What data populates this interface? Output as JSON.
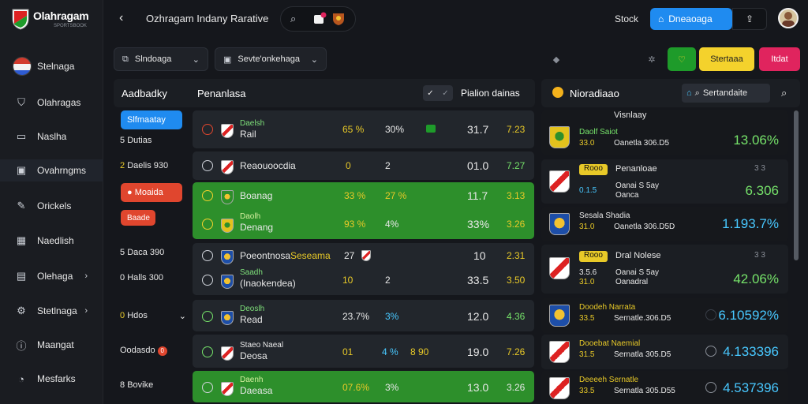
{
  "brand": {
    "name": "Olahragam",
    "sub": "SPORTSBOOK"
  },
  "sidebar": {
    "items": [
      {
        "label": "Stelnaga",
        "icon": "flag-icon"
      },
      {
        "label": "Olahragas",
        "icon": "shield-icon"
      },
      {
        "label": "Naslha",
        "icon": "chat-icon"
      },
      {
        "label": "Ovahrngms",
        "icon": "box-icon"
      },
      {
        "label": "Orickels",
        "icon": "trophy-icon"
      },
      {
        "label": "Naedlish",
        "icon": "grid-icon"
      },
      {
        "label": "Olehaga",
        "icon": "calendar-icon",
        "chevron": "›"
      },
      {
        "label": "Stetlnaga",
        "icon": "settings-icon",
        "chevron": "›"
      },
      {
        "label": "Maangat",
        "icon": "info-icon"
      },
      {
        "label": "Mesfarks",
        "icon": "user-icon"
      }
    ]
  },
  "header": {
    "title": "Ozhragam Indany Rarative",
    "stock": "Stock",
    "primary": "Dneaoaga"
  },
  "filters": [
    {
      "label": "Slndoaga",
      "icon": "filter-icon"
    },
    {
      "label": "Sevte'onkehaga",
      "icon": "calendar-icon"
    }
  ],
  "actions": [
    {
      "label": "",
      "bg": "#1e9b2a",
      "fg": "#f4d22c",
      "icon": "heart-icon"
    },
    {
      "label": "Stertaaa",
      "bg": "#f4d22c",
      "fg": "#222"
    },
    {
      "label": "Itdat",
      "bg": "#e0245e",
      "fg": "#fff"
    }
  ],
  "main_panel": {
    "col1": "Aadbadky",
    "col2": "Penanlasa",
    "col3": "Pialion dainas"
  },
  "categories": [
    {
      "label": "Slfmaatay",
      "style": "blue"
    },
    {
      "label": "Dutias",
      "prefix": "5"
    },
    {
      "label": "Daelis 930",
      "prefix": "2"
    },
    {
      "label": "Moaida",
      "style": "red"
    },
    {
      "label": "Baade",
      "style": "redsmall"
    },
    {
      "label": "Daca 390",
      "prefix": "5"
    },
    {
      "label": "Halls 300",
      "prefix": "0"
    },
    {
      "label": "Hdos",
      "prefix": "0"
    },
    {
      "label": "Oodasdo",
      "badge": "0"
    },
    {
      "label": "Bovike",
      "prefix": "8"
    }
  ],
  "matches": [
    {
      "green": false,
      "lines": [
        {
          "team": "Rail",
          "small": "Daelsh",
          "a": "65 %",
          "b": "30%",
          "c": "31.7",
          "d": "7.23"
        }
      ]
    },
    {
      "green": false,
      "lines": [
        {
          "team": "Reaouoocdia",
          "a": "0",
          "b": "2",
          "c": "01.0",
          "d": "7.27"
        }
      ]
    },
    {
      "green": true,
      "lines": [
        {
          "team": "Boanag",
          "a": "33 %",
          "b": "27 %",
          "c": "11.7",
          "d": "3.13"
        },
        {
          "team": "Denang",
          "small": "Daolh",
          "a": "93 %",
          "b": "4%",
          "c": "33%",
          "d": "3.26"
        }
      ]
    },
    {
      "green": false,
      "lines": [
        {
          "team": "Poeontnosa",
          "extra": "Seseama",
          "a": "27",
          "b": "",
          "c": "10",
          "d": "2.31"
        },
        {
          "team": "(Inaokendea)",
          "small": "Saadh",
          "a": "10",
          "b": "2",
          "c": "33.5",
          "d": "3.50"
        }
      ]
    },
    {
      "green": false,
      "lines": [
        {
          "team": "Read",
          "small": "Deoslh",
          "a": "23.7%",
          "b": "3%",
          "c": "12.0",
          "d": "4.36"
        }
      ]
    },
    {
      "green": false,
      "lines": [
        {
          "team": "Deosa",
          "small": "Staeo Naeal",
          "a": "01",
          "b": "4 %",
          "b2": "8 90",
          "c": "19.0",
          "d": "7.26"
        }
      ]
    },
    {
      "green": true,
      "lines": [
        {
          "team": "Daeasa",
          "small": "Daenh",
          "a": "07.6%",
          "b": "3%",
          "c": "13.0",
          "d": "3.26"
        }
      ]
    }
  ],
  "right_panel": {
    "title": "Nioradiaao",
    "tab": "Sertandaite",
    "items": [
      {
        "top": "Visnlaay",
        "l1": "Daolf Saiot",
        "l2": "Oanetla 306.D5",
        "n": "33.0",
        "big": "13.06%",
        "bigc": "grn",
        "crest": "yel"
      },
      {
        "tag": "Rooo",
        "top": "Penanloae",
        "l1": "Oanai S 5ay",
        "l2": "Oanca",
        "n": "0.1.5",
        "big": "6.306",
        "bigc": "grn",
        "crest": "red",
        "tr": "3 3"
      },
      {
        "top": "Sesala Shadia",
        "l1": "Oanetla 306.D5D",
        "n": "31.0",
        "big": "1.193.7%",
        "bigc": "cyan",
        "crest": "blue"
      },
      {
        "tag": "Rooo",
        "top": "Dral Nolese",
        "l1": "Oanai S 5ay",
        "l2": "Oanadral",
        "n": "3.5.6",
        "n2": "31.0",
        "big": "42.06%",
        "bigc": "grn",
        "crest": "red",
        "tr": "3 3"
      },
      {
        "top": "Doodeh Narrata",
        "l1": "Sernatle.306.D5",
        "n": "33.5",
        "big": "6.10592%",
        "bigc": "cyan",
        "crest": "blue"
      },
      {
        "top": "Dooebat Naemial",
        "l1": "Sernatla 305.D5",
        "n": "31.5",
        "big": "4.133396",
        "bigc": "cyan",
        "crest": "red"
      },
      {
        "top": "Deeeeh Sernatle",
        "l1": "Sernatla 305.D55",
        "n": "33.5",
        "big": "4.537396",
        "bigc": "cyan",
        "crest": "red"
      }
    ]
  }
}
